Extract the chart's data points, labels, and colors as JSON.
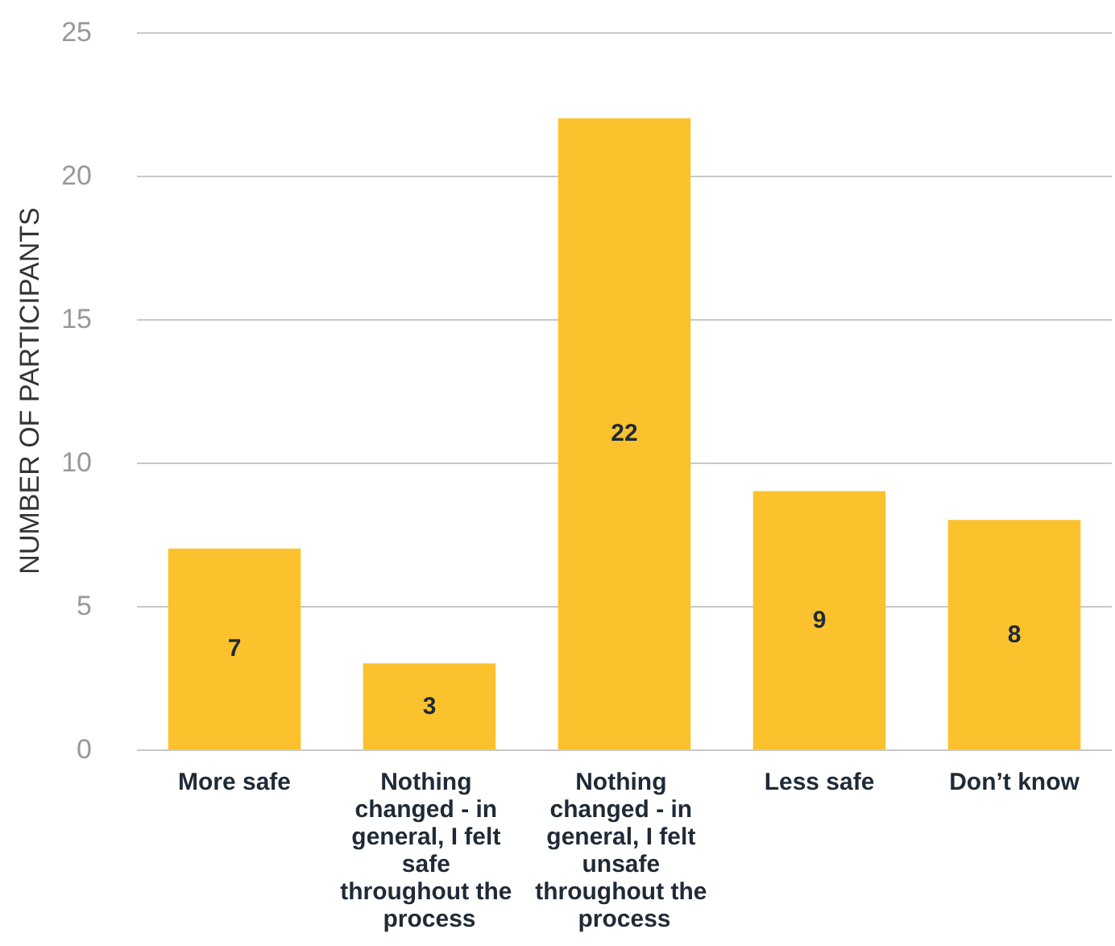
{
  "chart_data": {
    "type": "bar",
    "ylabel": "NUMBER OF PARTICIPANTS",
    "categories": [
      "More safe",
      "Nothing changed - in general, I felt safe throughout the process",
      "Nothing changed - in general, I felt unsafe throughout the process",
      "Less safe",
      "Don’t know"
    ],
    "values": [
      7,
      3,
      22,
      9,
      8
    ],
    "color": "#fbc22e",
    "ylim": [
      0,
      25
    ],
    "yticks": [
      0,
      5,
      10,
      15,
      20,
      25
    ],
    "grid": "y",
    "data_labels": true
  }
}
